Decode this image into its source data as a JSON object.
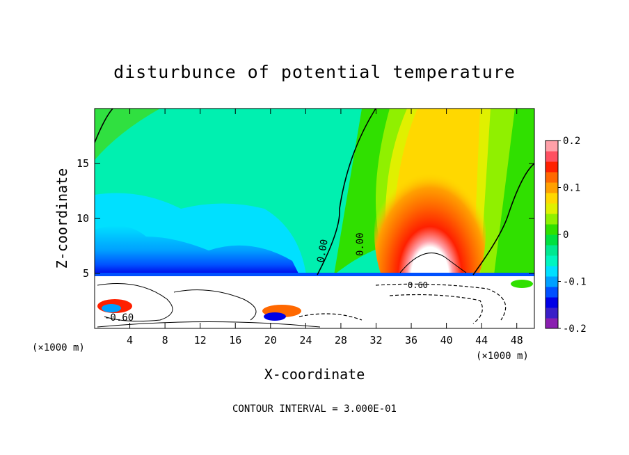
{
  "chart_data": {
    "type": "heatmap",
    "title": "disturbunce of potential temperature",
    "xlabel": "X-coordinate",
    "ylabel": "Z-coordinate",
    "x_unit": "(×1000 m)",
    "y_unit": "(×1000 m)",
    "xlim": [
      0,
      50
    ],
    "ylim": [
      0,
      20
    ],
    "x_ticks": [
      "4",
      "8",
      "12",
      "16",
      "20",
      "24",
      "28",
      "32",
      "36",
      "40",
      "44",
      "48"
    ],
    "y_ticks": [
      "5",
      "10",
      "15"
    ],
    "colorbar": {
      "range": [
        -0.2,
        0.2
      ],
      "tick_labels": [
        "0.2",
        "0.1",
        "0",
        "-0.1",
        "-0.2"
      ],
      "colors": [
        "#8a1fb0",
        "#3a1fc8",
        "#0000e6",
        "#0050ff",
        "#00a0ff",
        "#00e0ff",
        "#00f5c0",
        "#00e890",
        "#00e040",
        "#30e000",
        "#90f000",
        "#e0f000",
        "#ffd800",
        "#ffa000",
        "#ff6800",
        "#ff2000",
        "#ff5060",
        "#ffa0a8"
      ]
    },
    "contour_labels": [
      "0.00",
      "0.00",
      "-0.60",
      "0.60"
    ],
    "footer": "CONTOUR INTERVAL = 3.000E-01"
  }
}
